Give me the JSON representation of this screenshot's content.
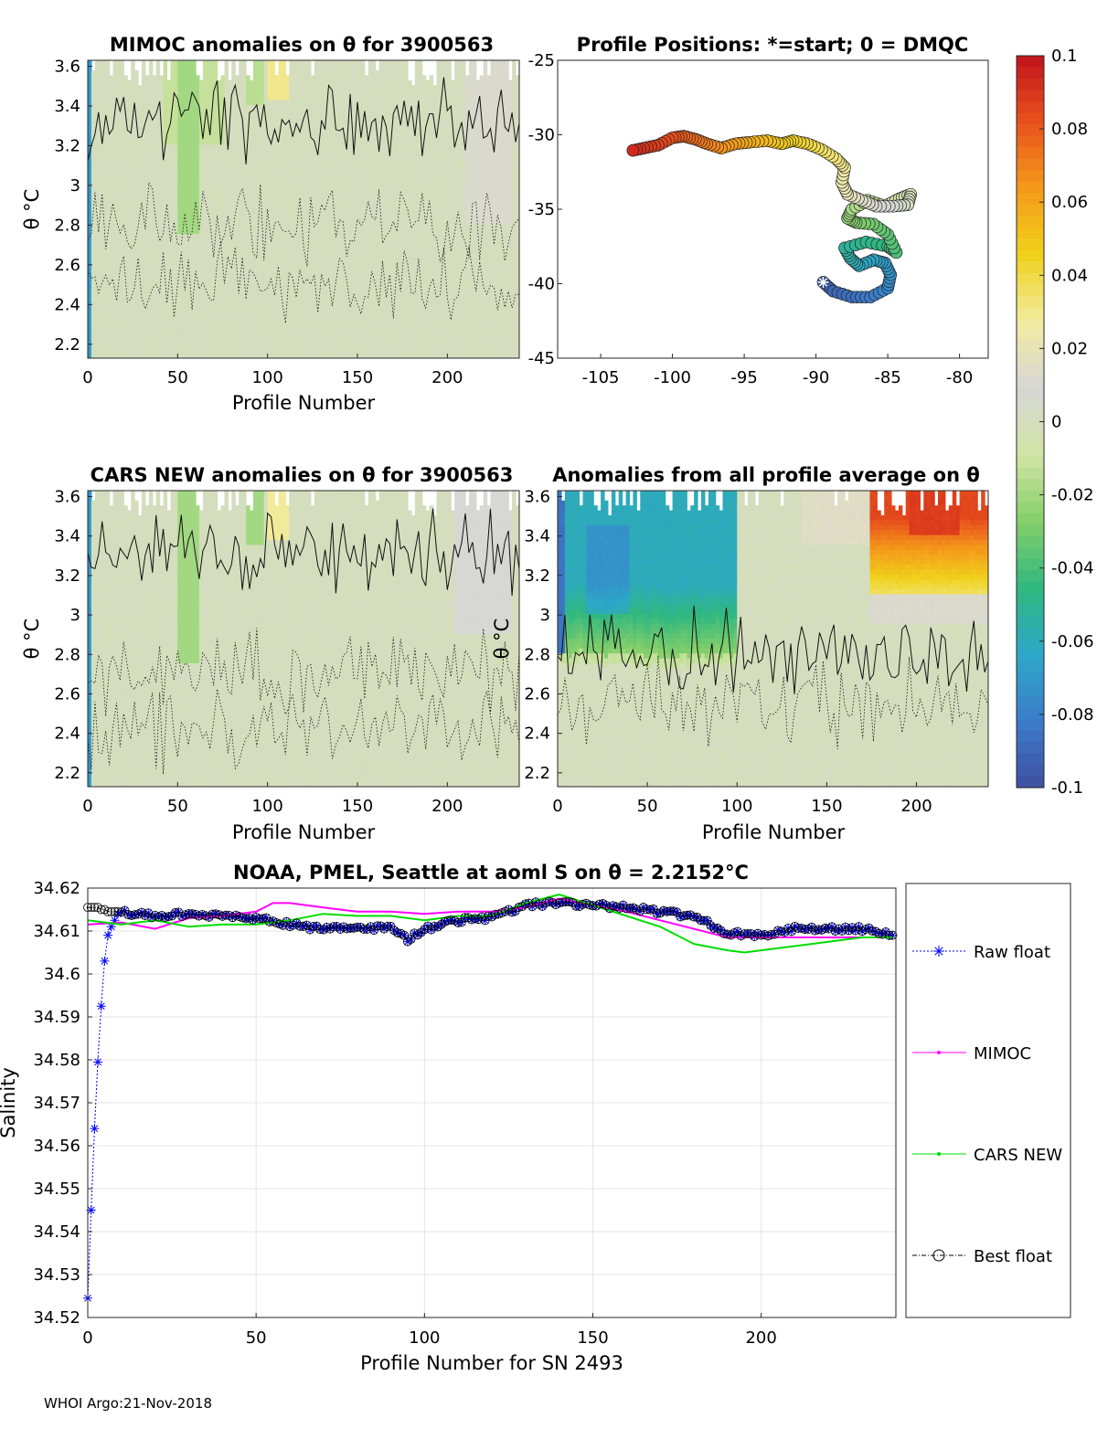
{
  "footer": "WHOI Argo:21-Nov-2018",
  "colorbar": {
    "ticks": [
      "0.1",
      "0.08",
      "0.06",
      "0.04",
      "0.02",
      "0",
      "-0.02",
      "-0.04",
      "-0.06",
      "-0.08",
      "-0.1"
    ],
    "range": [
      -0.1,
      0.1
    ],
    "colors": [
      "#3f4fa2",
      "#3b7cc9",
      "#2da7c9",
      "#30b87f",
      "#84cf6a",
      "#d2e5a5",
      "#d6d6d6",
      "#f2eba0",
      "#f0d21c",
      "#f59a1a",
      "#e8521c",
      "#c2131c"
    ]
  },
  "panels": {
    "mimoc": {
      "title": "MIMOC anomalies on θ  for 3900563",
      "ylabel": "θ °C",
      "xlabel": "Profile Number",
      "xticks": [
        "0",
        "50",
        "100",
        "150",
        "200"
      ],
      "yticks": [
        "2.2",
        "2.4",
        "2.6",
        "2.8",
        "3",
        "3.2",
        "3.4",
        "3.6"
      ]
    },
    "positions": {
      "title": "Profile Positions: *=start; 0 = DMQC",
      "xticks": [
        "-105",
        "-100",
        "-95",
        "-90",
        "-85",
        "-80"
      ],
      "yticks": [
        "-25",
        "-30",
        "-35",
        "-40",
        "-45"
      ]
    },
    "cars": {
      "title": "CARS NEW anomalies on θ for 3900563",
      "ylabel": "θ °C",
      "xlabel": "Profile Number",
      "xticks": [
        "0",
        "50",
        "100",
        "150",
        "200"
      ],
      "yticks": [
        "2.2",
        "2.4",
        "2.6",
        "2.8",
        "3",
        "3.2",
        "3.4",
        "3.6"
      ]
    },
    "allavg": {
      "title": "Anomalies from all profile average on θ",
      "ylabel": "θ °C",
      "xlabel": "Profile Number",
      "xticks": [
        "0",
        "50",
        "100",
        "150",
        "200"
      ],
      "yticks": [
        "2.2",
        "2.4",
        "2.6",
        "2.8",
        "3",
        "3.2",
        "3.4",
        "3.6"
      ]
    },
    "salinity": {
      "title": "NOAA, PMEL, Seattle at aoml S on θ = 2.2152°C",
      "ylabel": "Salinity",
      "xlabel": "Profile Number for SN 2493",
      "xticks": [
        "0",
        "50",
        "100",
        "150",
        "200"
      ],
      "yticks": [
        "34.52",
        "34.53",
        "34.54",
        "34.55",
        "34.56",
        "34.57",
        "34.58",
        "34.59",
        "34.6",
        "34.61",
        "34.62"
      ],
      "legend": [
        "Raw float",
        "MIMOC",
        "CARS NEW",
        "Best float"
      ]
    }
  },
  "chart_data": [
    {
      "type": "heatmap",
      "title": "MIMOC anomalies on θ  for 3900563",
      "xlabel": "Profile Number",
      "ylabel": "θ °C",
      "xlim": [
        0,
        240
      ],
      "ylim": [
        2.13,
        3.63
      ],
      "description_values": "anomaly mostly near 0; weak negative (green, about -0.02) band at profiles 50-60 above 2.75 °C; weak positive (yellow, about 0.03) near profile 100-110 above 3.45 °C; strong negative column at profiles 0-3",
      "anomaly_range": [
        -0.1,
        0.1
      ]
    },
    {
      "type": "scatter",
      "title": "Profile Positions: *=start; 0 = DMQC",
      "xlim": [
        -108,
        -78
      ],
      "ylim": [
        -45,
        -25
      ],
      "x": [
        -89.5,
        -88.8,
        -87.5,
        -86.2,
        -85.0,
        -84.8,
        -85.2,
        -86.0,
        -87.0,
        -87.6,
        -88.0,
        -86.5,
        -85.0,
        -84.4,
        -85.0,
        -86.0,
        -87.2,
        -87.8,
        -87.5,
        -86.4,
        -85.2,
        -84.2,
        -83.4,
        -83.6,
        -84.6,
        -85.8,
        -86.8,
        -87.8,
        -88.2,
        -88.0,
        -88.6,
        -89.6,
        -90.6,
        -91.6,
        -92.4,
        -93.4,
        -94.6,
        -95.6,
        -96.6,
        -97.6,
        -98.4,
        -99.2,
        -100.0,
        -101.0,
        -102.0,
        -103.0
      ],
      "y": [
        -39.9,
        -40.5,
        -40.9,
        -40.9,
        -40.3,
        -39.4,
        -38.6,
        -38.4,
        -38.8,
        -38.3,
        -37.6,
        -37.2,
        -37.5,
        -37.9,
        -36.7,
        -36.0,
        -35.9,
        -35.6,
        -35.0,
        -34.4,
        -34.8,
        -34.3,
        -34.0,
        -34.7,
        -34.8,
        -34.8,
        -34.4,
        -34.0,
        -33.2,
        -32.2,
        -31.6,
        -31.0,
        -30.6,
        -30.4,
        -30.6,
        -30.4,
        -30.5,
        -30.6,
        -30.9,
        -30.6,
        -30.3,
        -30.1,
        -30.2,
        -30.7,
        -30.9,
        -31.1
      ]
    },
    {
      "type": "heatmap",
      "title": "CARS NEW anomalies on θ for 3900563",
      "xlabel": "Profile Number",
      "ylabel": "θ °C",
      "xlim": [
        0,
        240
      ],
      "ylim": [
        2.13,
        3.63
      ],
      "description_values": "anomaly mostly near 0; weak negative (about -0.02) at profiles 50-60 above 2.75 °C; weak positive (about 0.03) near profile 100-110 above 3.4 °C",
      "anomaly_range": [
        -0.1,
        0.1
      ]
    },
    {
      "type": "heatmap",
      "title": "Anomalies from all profile average on θ",
      "xlabel": "Profile Number",
      "ylabel": "θ °C",
      "xlim": [
        0,
        240
      ],
      "ylim": [
        2.13,
        3.63
      ],
      "description_values": "negative anomalies (-0.03 to -0.07) at profiles 0-100 above about 2.8 °C; near zero elsewhere; positive anomalies (0.03 to 0.09) at profiles 175-240 above about 3.1 °C",
      "anomaly_range": [
        -0.1,
        0.1
      ]
    },
    {
      "type": "line",
      "title": "NOAA, PMEL, Seattle at aoml S on θ = 2.2152°C",
      "xlabel": "Profile Number for SN 2493",
      "ylabel": "Salinity",
      "xlim": [
        0,
        240
      ],
      "ylim": [
        34.52,
        34.62
      ],
      "grid": true,
      "legend_position": "right outside",
      "series": [
        {
          "name": "Raw float",
          "x": [
            0,
            1,
            2,
            3,
            4,
            5,
            6,
            7,
            8,
            9,
            10,
            20,
            30,
            40,
            50,
            60,
            70,
            80,
            90,
            95,
            100,
            110,
            120,
            130,
            140,
            150,
            160,
            170,
            180,
            190,
            200,
            210,
            220,
            230,
            239
          ],
          "y": [
            34.5245,
            34.545,
            34.564,
            34.5795,
            34.5925,
            34.603,
            34.609,
            34.611,
            34.6125,
            34.614,
            34.6145,
            34.6135,
            34.614,
            34.6135,
            34.613,
            34.6115,
            34.6105,
            34.611,
            34.6105,
            34.608,
            34.6105,
            34.6125,
            34.613,
            34.616,
            34.6165,
            34.616,
            34.6155,
            34.6145,
            34.6135,
            34.6095,
            34.609,
            34.6105,
            34.6105,
            34.6105,
            34.609
          ]
        },
        {
          "name": "MIMOC",
          "x": [
            0,
            10,
            20,
            30,
            40,
            50,
            55,
            60,
            70,
            80,
            90,
            100,
            110,
            120,
            130,
            140,
            150,
            160,
            170,
            180,
            190,
            200,
            210,
            220,
            230,
            239
          ],
          "y": [
            34.6115,
            34.612,
            34.6105,
            34.613,
            34.6135,
            34.6145,
            34.6165,
            34.6165,
            34.6155,
            34.6145,
            34.6145,
            34.614,
            34.6145,
            34.6145,
            34.6155,
            34.6175,
            34.616,
            34.6145,
            34.6125,
            34.6105,
            34.6085,
            34.6085,
            34.6085,
            34.6085,
            34.6085,
            34.6085
          ]
        },
        {
          "name": "CARS NEW",
          "x": [
            0,
            10,
            20,
            30,
            40,
            50,
            60,
            70,
            80,
            90,
            100,
            110,
            120,
            130,
            140,
            150,
            160,
            170,
            180,
            190,
            195,
            200,
            210,
            220,
            230,
            239
          ],
          "y": [
            34.6125,
            34.6115,
            34.6125,
            34.611,
            34.6115,
            34.6115,
            34.6125,
            34.614,
            34.6135,
            34.6135,
            34.6125,
            34.6135,
            34.6135,
            34.6165,
            34.6185,
            34.616,
            34.6135,
            34.611,
            34.607,
            34.6055,
            34.605,
            34.6055,
            34.6065,
            34.6075,
            34.6085,
            34.6085
          ]
        },
        {
          "name": "Best float",
          "x": [
            0,
            1,
            2,
            3,
            4,
            5,
            6,
            7,
            8,
            9,
            10,
            20,
            30,
            40,
            50,
            60,
            70,
            80,
            90,
            95,
            100,
            110,
            120,
            130,
            140,
            150,
            160,
            170,
            180,
            190,
            200,
            210,
            220,
            230,
            239
          ],
          "y": [
            34.6155,
            34.6155,
            34.6155,
            34.6155,
            34.615,
            34.615,
            34.6145,
            34.6145,
            34.6145,
            34.6145,
            34.6145,
            34.6135,
            34.614,
            34.6135,
            34.613,
            34.6115,
            34.6105,
            34.611,
            34.6105,
            34.608,
            34.6105,
            34.6125,
            34.613,
            34.616,
            34.6165,
            34.616,
            34.6155,
            34.6145,
            34.6135,
            34.6095,
            34.609,
            34.6105,
            34.6105,
            34.6105,
            34.609
          ]
        }
      ]
    }
  ]
}
